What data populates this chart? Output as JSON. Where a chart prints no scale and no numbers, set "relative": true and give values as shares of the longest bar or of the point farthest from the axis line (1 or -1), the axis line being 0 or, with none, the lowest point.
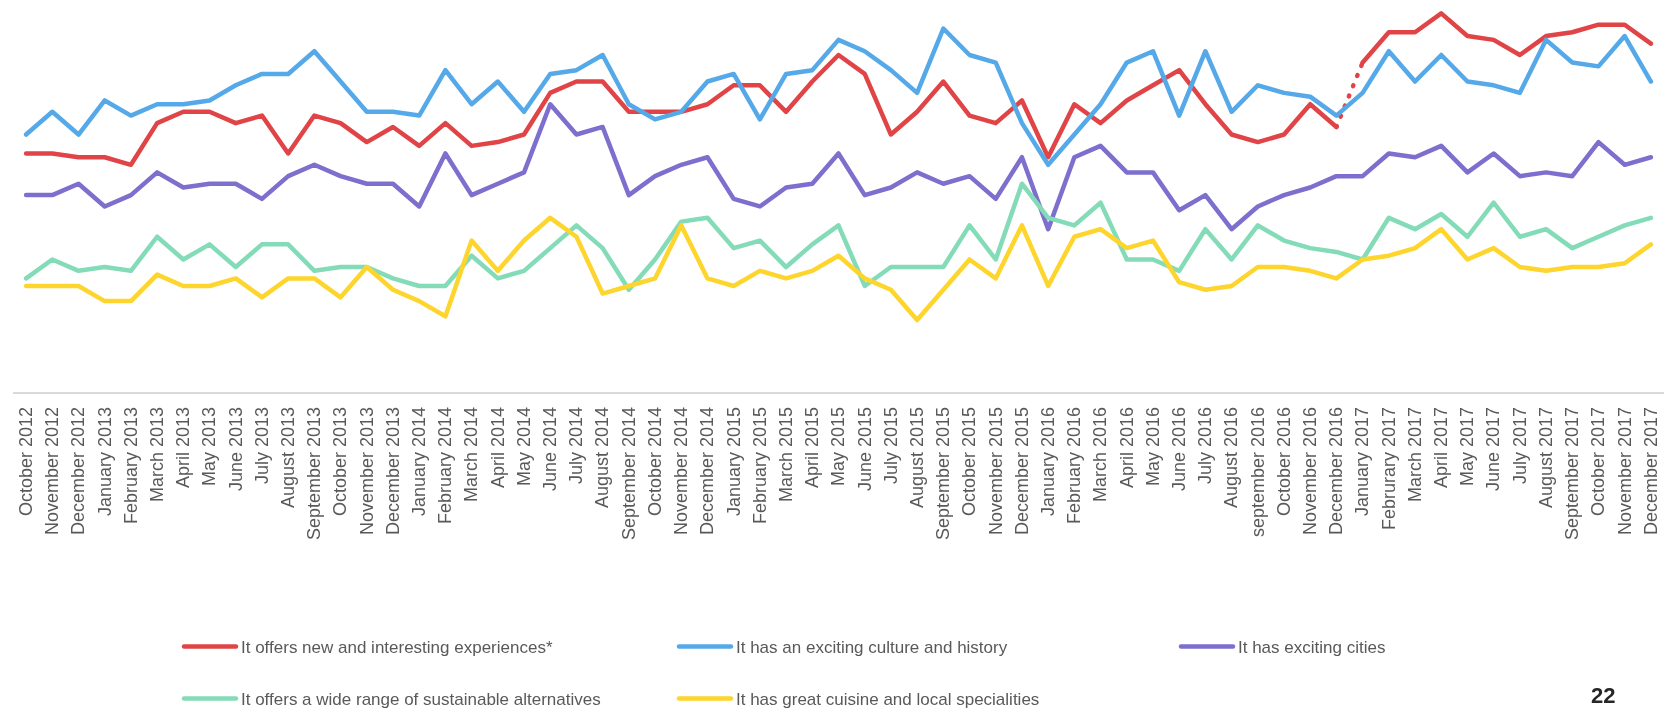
{
  "chart_data": {
    "type": "line",
    "relative": true,
    "legend": "bottom",
    "categories": [
      "October 2012",
      "November 2012",
      "December 2012",
      "January 2013",
      "February 2013",
      "March 2013",
      "April 2013",
      "May 2013",
      "June 2013",
      "July 2013",
      "August 2013",
      "September 2013",
      "October 2013",
      "November 2013",
      "December 2013",
      "January 2014",
      "February 2014",
      "March 2014",
      "April 2014",
      "May 2014",
      "June 2014",
      "July 2014",
      "August 2014",
      "September 2014",
      "October 2014",
      "November 2014",
      "December 2014",
      "January 2015",
      "February 2015",
      "March 2015",
      "April 2015",
      "May 2015",
      "June 2015",
      "July 2015",
      "August 2015",
      "September 2015",
      "October 2015",
      "November 2015",
      "December 2015",
      "January 2016",
      "February 2016",
      "March 2016",
      "April 2016",
      "May 2016",
      "June 2016",
      "July 2016",
      "August 2016",
      "september 2016",
      "October 2016",
      "November 2016",
      "December 2016",
      "January 2017",
      "Februrary 2017",
      "March 2017",
      "April 2017",
      "May 2017",
      "June 2017",
      "July 2017",
      "August 2017",
      "September 2017",
      "October 2017",
      "November 2017",
      "December 2017"
    ],
    "series": [
      {
        "name": "It offers new and interesting experiences*",
        "color": "#e04446",
        "values": [
          0.63,
          0.63,
          0.62,
          0.62,
          0.6,
          0.71,
          0.74,
          0.74,
          0.71,
          0.73,
          0.63,
          0.73,
          0.71,
          0.66,
          0.7,
          0.65,
          0.71,
          0.65,
          0.66,
          0.68,
          0.79,
          0.82,
          0.82,
          0.74,
          0.74,
          0.74,
          0.76,
          0.81,
          0.81,
          0.74,
          0.82,
          0.89,
          0.84,
          0.68,
          0.74,
          0.82,
          0.73,
          0.71,
          0.77,
          0.62,
          0.76,
          0.71,
          0.77,
          0.81,
          0.85,
          0.76,
          0.68,
          0.66,
          0.68,
          0.76,
          0.7,
          null,
          null,
          null,
          null,
          null,
          null,
          null,
          null,
          null,
          null,
          null,
          null
        ]
      },
      {
        "color": "#e04446",
        "line_style": "dotted",
        "values": [
          null,
          null,
          null,
          null,
          null,
          null,
          null,
          null,
          null,
          null,
          null,
          null,
          null,
          null,
          null,
          null,
          null,
          null,
          null,
          null,
          null,
          null,
          null,
          null,
          null,
          null,
          null,
          null,
          null,
          null,
          null,
          null,
          null,
          null,
          null,
          null,
          null,
          null,
          null,
          null,
          null,
          null,
          null,
          null,
          null,
          null,
          null,
          null,
          null,
          null,
          0.7,
          0.87,
          null,
          null,
          null,
          null,
          null,
          null,
          null,
          null,
          null,
          null,
          null
        ]
      },
      {
        "color": "#e04446",
        "values": [
          null,
          null,
          null,
          null,
          null,
          null,
          null,
          null,
          null,
          null,
          null,
          null,
          null,
          null,
          null,
          null,
          null,
          null,
          null,
          null,
          null,
          null,
          null,
          null,
          null,
          null,
          null,
          null,
          null,
          null,
          null,
          null,
          null,
          null,
          null,
          null,
          null,
          null,
          null,
          null,
          null,
          null,
          null,
          null,
          null,
          null,
          null,
          null,
          null,
          null,
          null,
          0.87,
          0.95,
          0.95,
          1.0,
          0.94,
          0.93,
          0.89,
          0.94,
          0.95,
          0.97,
          0.97,
          0.92
        ]
      },
      {
        "name": "It has an exciting culture and history",
        "color": "#55a9e8",
        "values": [
          0.68,
          0.74,
          0.68,
          0.77,
          0.73,
          0.76,
          0.76,
          0.77,
          0.81,
          0.84,
          0.84,
          0.9,
          0.82,
          0.74,
          0.74,
          0.73,
          0.85,
          0.76,
          0.82,
          0.74,
          0.84,
          0.85,
          0.89,
          0.76,
          0.72,
          0.74,
          0.82,
          0.84,
          0.72,
          0.84,
          0.85,
          0.93,
          0.9,
          0.85,
          0.79,
          0.96,
          0.89,
          0.87,
          0.71,
          0.6,
          0.68,
          0.76,
          0.87,
          0.9,
          0.73,
          0.9,
          0.74,
          0.81,
          0.79,
          0.78,
          0.73,
          0.79,
          0.9,
          0.82,
          0.89,
          0.82,
          0.81,
          0.79,
          0.93,
          0.87,
          0.86,
          0.94,
          0.82
        ]
      },
      {
        "name": "It has exciting cities",
        "color": "#7c6fcd",
        "values": [
          0.52,
          0.52,
          0.55,
          0.49,
          0.52,
          0.58,
          0.54,
          0.55,
          0.55,
          0.51,
          0.57,
          0.6,
          0.57,
          0.55,
          0.55,
          0.49,
          0.63,
          0.52,
          0.55,
          0.58,
          0.76,
          0.68,
          0.7,
          0.52,
          0.57,
          0.6,
          0.62,
          0.51,
          0.49,
          0.54,
          0.55,
          0.63,
          0.52,
          0.54,
          0.58,
          0.55,
          0.57,
          0.51,
          0.62,
          0.43,
          0.62,
          0.65,
          0.58,
          0.58,
          0.48,
          0.52,
          0.43,
          0.49,
          0.52,
          0.54,
          0.57,
          0.57,
          0.63,
          0.62,
          0.65,
          0.58,
          0.63,
          0.57,
          0.58,
          0.57,
          0.66,
          0.6,
          0.62
        ]
      },
      {
        "name": "It offers a wide range of sustainable alternatives",
        "color": "#84dbb7",
        "values": [
          0.3,
          0.35,
          0.32,
          0.33,
          0.32,
          0.41,
          0.35,
          0.39,
          0.33,
          0.39,
          0.39,
          0.32,
          0.33,
          0.33,
          0.3,
          0.28,
          0.28,
          0.36,
          0.3,
          0.32,
          0.38,
          0.44,
          0.38,
          0.27,
          0.35,
          0.45,
          0.46,
          0.38,
          0.4,
          0.33,
          0.39,
          0.44,
          0.28,
          0.33,
          0.33,
          0.33,
          0.44,
          0.35,
          0.55,
          0.46,
          0.44,
          0.5,
          0.35,
          0.35,
          0.32,
          0.43,
          0.35,
          0.44,
          0.4,
          0.38,
          0.37,
          0.35,
          0.46,
          0.43,
          0.47,
          0.41,
          0.5,
          0.41,
          0.43,
          0.38,
          0.41,
          0.44,
          0.46
        ]
      },
      {
        "name": "It has great cuisine and local specialities",
        "color": "#fdd52c",
        "values": [
          0.28,
          0.28,
          0.28,
          0.24,
          0.24,
          0.31,
          0.28,
          0.28,
          0.3,
          0.25,
          0.3,
          0.3,
          0.25,
          0.33,
          0.27,
          0.24,
          0.2,
          0.4,
          0.32,
          0.4,
          0.46,
          0.41,
          0.26,
          0.28,
          0.3,
          0.44,
          0.3,
          0.28,
          0.32,
          0.3,
          0.32,
          0.36,
          0.3,
          0.27,
          0.19,
          0.27,
          0.35,
          0.3,
          0.44,
          0.28,
          0.41,
          0.43,
          0.38,
          0.4,
          0.29,
          0.27,
          0.28,
          0.33,
          0.33,
          0.32,
          0.3,
          0.35,
          0.36,
          0.38,
          0.43,
          0.35,
          0.38,
          0.33,
          0.32,
          0.33,
          0.33,
          0.34,
          0.39
        ]
      }
    ],
    "annotations": [
      "22"
    ]
  }
}
